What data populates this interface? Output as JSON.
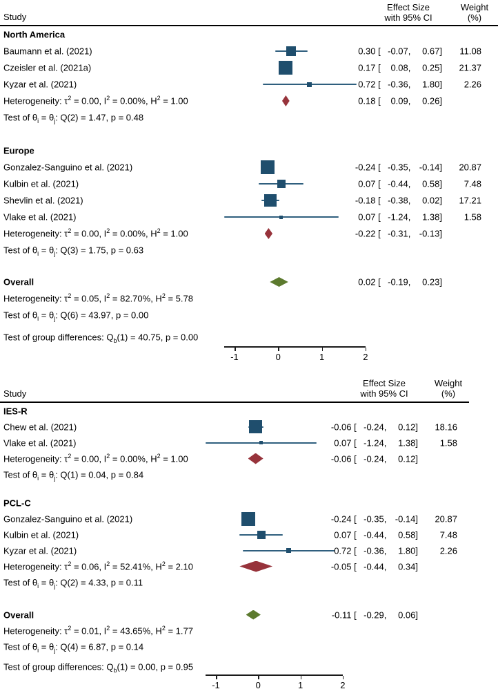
{
  "colors": {
    "study_square": "#1f4e6d",
    "ci_line": "#2f5f7e",
    "subgroup_diamond": "#97333b",
    "overall_diamond": "#5c7a2e",
    "rule": "#000000",
    "axis": "#1a1a1a"
  },
  "chart_data": {
    "type": "forest",
    "effect_label": "Effect Size with 95% CI",
    "panels": [
      {
        "header": {
          "study": "Study",
          "effect_line1": "Effect Size",
          "effect_line2": "with 95% CI",
          "weight_line1": "Weight",
          "weight_line2": "(%)"
        },
        "axis": {
          "ticks": [
            {
              "value": -1,
              "label": "-1"
            },
            {
              "value": 0,
              "label": "0"
            },
            {
              "value": 1,
              "label": "1"
            },
            {
              "value": 2,
              "label": "2"
            }
          ]
        },
        "rows": [
          {
            "type": "section",
            "label": "North America"
          },
          {
            "type": "study",
            "label": "Baumann et al. (2021)",
            "marker": "square",
            "est": 0.3,
            "lo": -0.07,
            "hi": 0.67,
            "weight": 11.08,
            "est_text": "0.30",
            "lo_text": "-0.07",
            "hi_text": "0.67",
            "weight_text": "11.08"
          },
          {
            "type": "study",
            "label": "Czeisler et al. (2021a)",
            "marker": "square",
            "est": 0.17,
            "lo": 0.08,
            "hi": 0.25,
            "weight": 21.37,
            "est_text": "0.17",
            "lo_text": "0.08",
            "hi_text": "0.25",
            "weight_text": "21.37"
          },
          {
            "type": "study",
            "label": "Kyzar et al. (2021)",
            "marker": "square",
            "est": 0.72,
            "lo": -0.36,
            "hi": 1.8,
            "weight": 2.26,
            "est_text": "0.72",
            "lo_text": "-0.36",
            "hi_text": "1.80",
            "weight_text": "2.26"
          },
          {
            "type": "het",
            "label": "Heterogeneity: τ^2 = 0.00, I^2 = 0.00%, H^2 = 1.00",
            "marker": "diamond_subgroup",
            "est": 0.18,
            "lo": 0.09,
            "hi": 0.26,
            "est_text": "0.18",
            "lo_text": "0.09",
            "hi_text": "0.26"
          },
          {
            "type": "test",
            "label": "Test of θ_i = θ_j: Q(2) = 1.47, p = 0.48"
          },
          {
            "type": "spacer"
          },
          {
            "type": "section",
            "label": "Europe"
          },
          {
            "type": "study",
            "label": "Gonzalez-Sanguino et al. (2021)",
            "marker": "square",
            "est": -0.24,
            "lo": -0.35,
            "hi": -0.14,
            "weight": 20.87,
            "est_text": "-0.24",
            "lo_text": "-0.35",
            "hi_text": "-0.14",
            "weight_text": "20.87"
          },
          {
            "type": "study",
            "label": "Kulbin et al. (2021)",
            "marker": "square",
            "est": 0.07,
            "lo": -0.44,
            "hi": 0.58,
            "weight": 7.48,
            "est_text": "0.07",
            "lo_text": "-0.44",
            "hi_text": "0.58",
            "weight_text": "7.48"
          },
          {
            "type": "study",
            "label": "Shevlin et al. (2021)",
            "marker": "square",
            "est": -0.18,
            "lo": -0.38,
            "hi": 0.02,
            "weight": 17.21,
            "est_text": "-0.18",
            "lo_text": "-0.38",
            "hi_text": "0.02",
            "weight_text": "17.21"
          },
          {
            "type": "study",
            "label": "Vlake et al. (2021)",
            "marker": "square",
            "est": 0.07,
            "lo": -1.24,
            "hi": 1.38,
            "weight": 1.58,
            "est_text": "0.07",
            "lo_text": "-1.24",
            "hi_text": "1.38",
            "weight_text": "1.58"
          },
          {
            "type": "het",
            "label": "Heterogeneity: τ^2 = 0.00, I^2 = 0.00%, H^2 = 1.00",
            "marker": "diamond_subgroup",
            "est": -0.22,
            "lo": -0.31,
            "hi": -0.13,
            "est_text": "-0.22",
            "lo_text": "-0.31",
            "hi_text": "-0.13"
          },
          {
            "type": "test",
            "label": "Test of θ_i = θ_j: Q(3) = 1.75, p = 0.63"
          },
          {
            "type": "spacer"
          },
          {
            "type": "overall",
            "label": "Overall",
            "marker": "diamond_overall",
            "est": 0.02,
            "lo": -0.19,
            "hi": 0.23,
            "est_text": "0.02",
            "lo_text": "-0.19",
            "hi_text": "0.23"
          },
          {
            "type": "het",
            "label": "Heterogeneity: τ^2 = 0.05, I^2 = 82.70%, H^2 = 5.78"
          },
          {
            "type": "test",
            "label": "Test of θ_i = θ_j: Q(6) = 43.97, p = 0.00"
          },
          {
            "type": "spacer"
          },
          {
            "type": "test",
            "label": "Test of group differences: Q_b(1) = 40.75, p = 0.00"
          }
        ]
      },
      {
        "header": {
          "study": "Study",
          "effect_line1": "Effect Size",
          "effect_line2": "with 95% CI",
          "weight_line1": "Weight",
          "weight_line2": "(%)"
        },
        "axis": {
          "ticks": [
            {
              "value": -1,
              "label": "-1"
            },
            {
              "value": 0,
              "label": "0"
            },
            {
              "value": 1,
              "label": "1"
            },
            {
              "value": 2,
              "label": "2"
            }
          ]
        },
        "rows": [
          {
            "type": "section",
            "label": "IES-R"
          },
          {
            "type": "study",
            "label": "Chew et al. (2021)",
            "marker": "square",
            "est": -0.06,
            "lo": -0.24,
            "hi": 0.12,
            "weight": 18.16,
            "est_text": "-0.06",
            "lo_text": "-0.24",
            "hi_text": "0.12",
            "weight_text": "18.16"
          },
          {
            "type": "study",
            "label": "Vlake et al. (2021)",
            "marker": "square",
            "est": 0.07,
            "lo": -1.24,
            "hi": 1.38,
            "weight": 1.58,
            "est_text": "0.07",
            "lo_text": "-1.24",
            "hi_text": "1.38",
            "weight_text": "1.58"
          },
          {
            "type": "het",
            "label": "Heterogeneity: τ^2 = 0.00, I^2 = 0.00%, H^2 = 1.00",
            "marker": "diamond_subgroup",
            "est": -0.06,
            "lo": -0.24,
            "hi": 0.12,
            "est_text": "-0.06",
            "lo_text": "-0.24",
            "hi_text": "0.12"
          },
          {
            "type": "test",
            "label": "Test of θ_i = θ_j: Q(1) = 0.04, p = 0.84"
          },
          {
            "type": "spacer"
          },
          {
            "type": "section",
            "label": "PCL-C"
          },
          {
            "type": "study",
            "label": "Gonzalez-Sanguino et al. (2021)",
            "marker": "square",
            "est": -0.24,
            "lo": -0.35,
            "hi": -0.14,
            "weight": 20.87,
            "est_text": "-0.24",
            "lo_text": "-0.35",
            "hi_text": "-0.14",
            "weight_text": "20.87"
          },
          {
            "type": "study",
            "label": "Kulbin et al. (2021)",
            "marker": "square",
            "est": 0.07,
            "lo": -0.44,
            "hi": 0.58,
            "weight": 7.48,
            "est_text": "0.07",
            "lo_text": "-0.44",
            "hi_text": "0.58",
            "weight_text": "7.48"
          },
          {
            "type": "study",
            "label": "Kyzar et al. (2021)",
            "marker": "square",
            "est": 0.72,
            "lo": -0.36,
            "hi": 1.8,
            "weight": 2.26,
            "est_text": "0.72",
            "lo_text": "-0.36",
            "hi_text": "1.80",
            "weight_text": "2.26"
          },
          {
            "type": "het",
            "label": "Heterogeneity: τ^2 = 0.06, I^2 = 52.41%, H^2 = 2.10",
            "marker": "diamond_subgroup",
            "est": -0.05,
            "lo": -0.44,
            "hi": 0.34,
            "est_text": "-0.05",
            "lo_text": "-0.44",
            "hi_text": "0.34"
          },
          {
            "type": "test",
            "label": "Test of θ_i = θ_j: Q(2) = 4.33, p = 0.11"
          },
          {
            "type": "spacer"
          },
          {
            "type": "overall",
            "label": "Overall",
            "marker": "diamond_overall",
            "est": -0.11,
            "lo": -0.29,
            "hi": 0.06,
            "est_text": "-0.11",
            "lo_text": "-0.29",
            "hi_text": "0.06"
          },
          {
            "type": "het",
            "label": "Heterogeneity: τ^2 = 0.01, I^2 = 43.65%, H^2 = 1.77"
          },
          {
            "type": "test",
            "label": "Test of θ_i = θ_j: Q(4) = 6.87, p = 0.14"
          },
          {
            "type": "spacer"
          },
          {
            "type": "test",
            "label": "Test of group differences: Q_b(1) = 0.00, p = 0.95"
          }
        ]
      }
    ]
  }
}
